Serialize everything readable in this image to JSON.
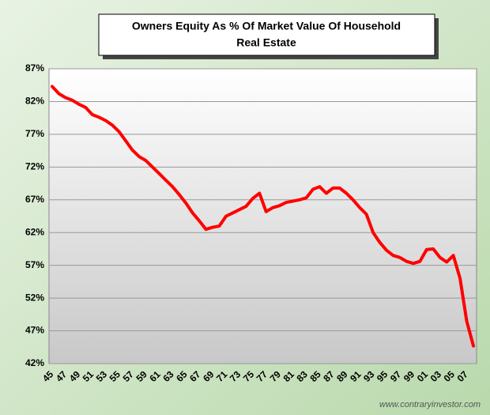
{
  "chart_data": {
    "type": "line",
    "title": "Owners Equity As % Of Market Value Of Household",
    "subtitle": "Real Estate",
    "source": "www.contraryinvestor.com",
    "categories": [
      "45",
      null,
      "47",
      null,
      "49",
      null,
      "51",
      null,
      "53",
      null,
      "55",
      null,
      "57",
      null,
      "59",
      null,
      "61",
      null,
      "63",
      null,
      "65",
      null,
      "67",
      null,
      "69",
      null,
      "71",
      null,
      "73",
      null,
      "75",
      null,
      "77",
      null,
      "79",
      null,
      "81",
      null,
      "83",
      null,
      "85",
      null,
      "87",
      null,
      "89",
      null,
      "91",
      null,
      "93",
      null,
      "95",
      null,
      "97",
      null,
      "99",
      null,
      "01",
      null,
      "03",
      null,
      "05",
      null,
      "07",
      null
    ],
    "values": [
      84.3,
      83.2,
      82.6,
      82.2,
      81.6,
      81.1,
      80.0,
      79.6,
      79.1,
      78.4,
      77.4,
      76.0,
      74.6,
      73.6,
      73.0,
      72.0,
      71.0,
      70.0,
      69.0,
      67.8,
      66.5,
      65.0,
      63.8,
      62.5,
      62.8,
      63.0,
      64.5,
      65.0,
      65.5,
      66.0,
      67.2,
      68.0,
      65.2,
      65.8,
      66.1,
      66.6,
      66.8,
      67.0,
      67.3,
      68.6,
      69.0,
      68.0,
      68.8,
      68.8,
      68.0,
      67.0,
      65.8,
      64.8,
      62.0,
      60.5,
      59.3,
      58.5,
      58.2,
      57.6,
      57.3,
      57.6,
      59.4,
      59.5,
      58.2,
      57.5,
      58.5,
      55.0,
      48.5,
      44.7
    ],
    "color": "#ff0000",
    "ylim": [
      42,
      87
    ],
    "yticks": [
      {
        "value": 42,
        "label": "42%"
      },
      {
        "value": 47,
        "label": "47%"
      },
      {
        "value": 52,
        "label": "52%"
      },
      {
        "value": 57,
        "label": "57%"
      },
      {
        "value": 62,
        "label": "62%"
      },
      {
        "value": 67,
        "label": "67%"
      },
      {
        "value": 72,
        "label": "72%"
      },
      {
        "value": 77,
        "label": "77%"
      },
      {
        "value": 82,
        "label": "82%"
      },
      {
        "value": 87,
        "label": "87%"
      }
    ],
    "grid": true
  }
}
